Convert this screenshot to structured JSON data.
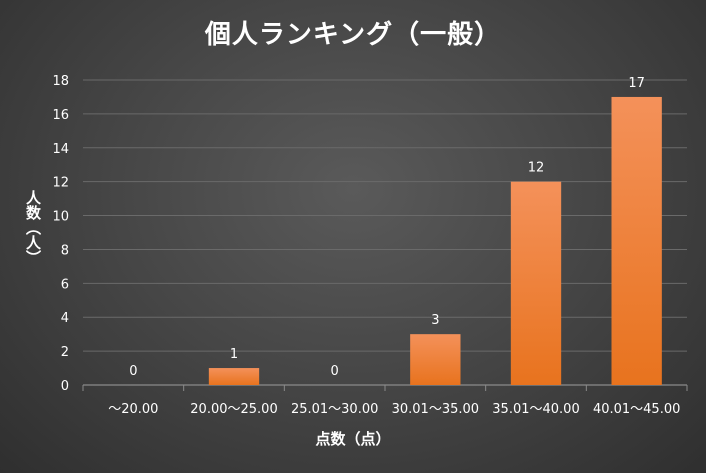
{
  "chart_data": {
    "type": "bar",
    "title": "個人ランキング（一般）",
    "xlabel": "点数（点）",
    "ylabel": "人数（人）",
    "categories": [
      "～20.00",
      "20.00～25.00",
      "25.01～30.00",
      "30.01～35.00",
      "35.01～40.00",
      "40.01～45.00"
    ],
    "values": [
      0,
      1,
      0,
      3,
      12,
      17
    ],
    "ylim": [
      0,
      18
    ],
    "yticks": [
      0,
      2,
      4,
      6,
      8,
      10,
      12,
      14,
      16,
      18
    ],
    "grid": true,
    "legend": "none",
    "colors": {
      "bar_top": "#f4915a",
      "bar_bottom": "#e8731e",
      "grid": "#6a6a6a",
      "text": "#ffffff"
    }
  }
}
